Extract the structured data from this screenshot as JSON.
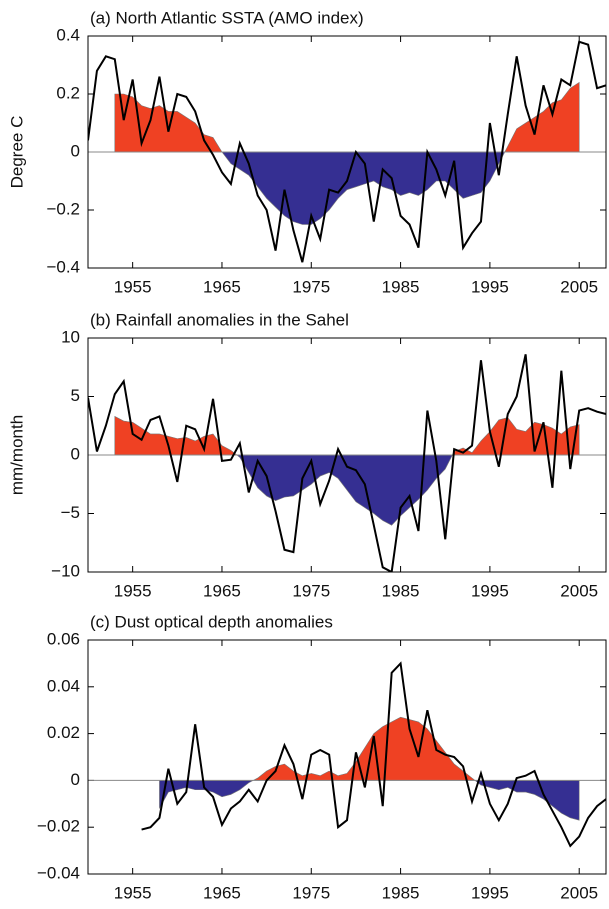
{
  "chart_data": [
    {
      "type": "line",
      "title": "(a) North Atlantic SSTA (AMO index)",
      "ylabel": "Degree C",
      "x": [
        1950,
        1951,
        1952,
        1953,
        1954,
        1955,
        1956,
        1957,
        1958,
        1959,
        1960,
        1961,
        1962,
        1963,
        1964,
        1965,
        1966,
        1967,
        1968,
        1969,
        1970,
        1971,
        1972,
        1973,
        1974,
        1975,
        1976,
        1977,
        1978,
        1979,
        1980,
        1981,
        1982,
        1983,
        1984,
        1985,
        1986,
        1987,
        1988,
        1989,
        1990,
        1991,
        1992,
        1993,
        1994,
        1995,
        1996,
        1997,
        1998,
        1999,
        2000,
        2001,
        2002,
        2003,
        2004,
        2005,
        2006,
        2007,
        2008
      ],
      "xlim": [
        1950,
        2008
      ],
      "xticks": [
        1955,
        1965,
        1975,
        1985,
        1995,
        2005
      ],
      "ylim": [
        -0.4,
        0.4
      ],
      "yticks": [
        {
          "value": -0.4,
          "label": "−0.4"
        },
        {
          "value": -0.2,
          "label": "−0.2"
        },
        0,
        0.2,
        0.4
      ],
      "series": [
        {
          "type": "area",
          "fill_positive": "#ef4123",
          "fill_negative": "#352f92",
          "values": [
            null,
            null,
            null,
            0.2,
            0.2,
            0.19,
            0.16,
            0.15,
            0.16,
            0.14,
            0.14,
            0.12,
            0.1,
            0.06,
            0.05,
            0.0,
            -0.04,
            -0.06,
            -0.08,
            -0.12,
            -0.16,
            -0.19,
            -0.22,
            -0.24,
            -0.25,
            -0.25,
            -0.23,
            -0.2,
            -0.16,
            -0.13,
            -0.12,
            -0.11,
            -0.1,
            -0.12,
            -0.13,
            -0.15,
            -0.14,
            -0.15,
            -0.13,
            -0.1,
            -0.1,
            -0.13,
            -0.16,
            -0.15,
            -0.14,
            -0.1,
            -0.04,
            0.02,
            0.08,
            0.1,
            0.12,
            0.14,
            0.17,
            0.18,
            0.22,
            0.24,
            null,
            null,
            null
          ]
        },
        {
          "type": "line",
          "color": "#000000",
          "values": [
            0.04,
            0.28,
            0.33,
            0.32,
            0.11,
            0.25,
            0.03,
            0.11,
            0.26,
            0.07,
            0.2,
            0.19,
            0.14,
            0.04,
            -0.01,
            -0.07,
            -0.11,
            0.03,
            -0.04,
            -0.15,
            -0.2,
            -0.34,
            -0.13,
            -0.27,
            -0.38,
            -0.22,
            -0.3,
            -0.13,
            -0.14,
            -0.1,
            0.0,
            -0.04,
            -0.24,
            -0.06,
            -0.09,
            -0.22,
            -0.25,
            -0.33,
            0.0,
            -0.06,
            -0.15,
            -0.03,
            -0.33,
            -0.28,
            -0.24,
            0.1,
            -0.08,
            0.13,
            0.33,
            0.16,
            0.06,
            0.23,
            0.13,
            0.25,
            0.23,
            0.38,
            0.37,
            0.22,
            0.23
          ]
        }
      ]
    },
    {
      "type": "line",
      "title": "(b) Rainfall anomalies in the Sahel",
      "ylabel": "mm/month",
      "x": [
        1950,
        1951,
        1952,
        1953,
        1954,
        1955,
        1956,
        1957,
        1958,
        1959,
        1960,
        1961,
        1962,
        1963,
        1964,
        1965,
        1966,
        1967,
        1968,
        1969,
        1970,
        1971,
        1972,
        1973,
        1974,
        1975,
        1976,
        1977,
        1978,
        1979,
        1980,
        1981,
        1982,
        1983,
        1984,
        1985,
        1986,
        1987,
        1988,
        1989,
        1990,
        1991,
        1992,
        1993,
        1994,
        1995,
        1996,
        1997,
        1998,
        1999,
        2000,
        2001,
        2002,
        2003,
        2004,
        2005,
        2006,
        2007,
        2008
      ],
      "xlim": [
        1950,
        2008
      ],
      "xticks": [
        1955,
        1965,
        1975,
        1985,
        1995,
        2005
      ],
      "ylim": [
        -10,
        10
      ],
      "yticks": [
        {
          "value": -10,
          "label": "−10"
        },
        {
          "value": -5,
          "label": "−5"
        },
        0,
        5,
        10
      ],
      "series": [
        {
          "type": "area",
          "fill_positive": "#ef4123",
          "fill_negative": "#352f92",
          "values": [
            null,
            null,
            null,
            3.3,
            2.9,
            2.8,
            2.3,
            1.8,
            1.8,
            1.6,
            1.4,
            1.5,
            1.2,
            1.6,
            1.8,
            0.8,
            0.4,
            -0.2,
            -1.5,
            -2.8,
            -3.5,
            -3.9,
            -3.6,
            -3.5,
            -3.0,
            -2.5,
            -1.8,
            -1.5,
            -2.0,
            -3.0,
            -4.0,
            -4.5,
            -5.0,
            -5.6,
            -6.0,
            -5.2,
            -4.5,
            -3.8,
            -3.0,
            -2.0,
            -1.2,
            0.3,
            0.6,
            0.2,
            1.2,
            2.0,
            3.0,
            3.2,
            2.2,
            2.0,
            2.8,
            2.6,
            2.3,
            1.8,
            2.4,
            2.6,
            null,
            null,
            null
          ]
        },
        {
          "type": "line",
          "color": "#000000",
          "values": [
            4.9,
            0.3,
            2.5,
            5.2,
            6.3,
            1.8,
            1.3,
            3.0,
            3.3,
            0.8,
            -2.3,
            2.5,
            2.2,
            0.5,
            4.8,
            -0.5,
            -0.4,
            1.0,
            -3.2,
            -0.5,
            -1.8,
            -4.8,
            -8.1,
            -8.3,
            -2.0,
            -0.5,
            -4.2,
            -2.2,
            0.5,
            -1.0,
            -1.3,
            -2.5,
            -6.0,
            -9.6,
            -10.0,
            -4.5,
            -3.5,
            -6.5,
            3.8,
            -0.5,
            -7.2,
            0.5,
            0.2,
            0.8,
            8.1,
            2.0,
            -1.0,
            3.5,
            5.0,
            8.6,
            0.3,
            2.8,
            -2.8,
            7.2,
            -1.2,
            3.8,
            4.0,
            3.7,
            3.5
          ]
        }
      ]
    },
    {
      "type": "line",
      "title": "(c) Dust optical depth anomalies",
      "x": [
        1950,
        1951,
        1952,
        1953,
        1954,
        1955,
        1956,
        1957,
        1958,
        1959,
        1960,
        1961,
        1962,
        1963,
        1964,
        1965,
        1966,
        1967,
        1968,
        1969,
        1970,
        1971,
        1972,
        1973,
        1974,
        1975,
        1976,
        1977,
        1978,
        1979,
        1980,
        1981,
        1982,
        1983,
        1984,
        1985,
        1986,
        1987,
        1988,
        1989,
        1990,
        1991,
        1992,
        1993,
        1994,
        1995,
        1996,
        1997,
        1998,
        1999,
        2000,
        2001,
        2002,
        2003,
        2004,
        2005,
        2006,
        2007,
        2008
      ],
      "xlim": [
        1950,
        2008
      ],
      "xticks": [
        1955,
        1965,
        1975,
        1985,
        1995,
        2005
      ],
      "ylim": [
        -0.04,
        0.06
      ],
      "yticks": [
        {
          "value": -0.04,
          "label": "−0.04"
        },
        {
          "value": -0.02,
          "label": "−0.02"
        },
        0,
        {
          "value": 0.02,
          "label": "0.02"
        },
        {
          "value": 0.04,
          "label": "0.04"
        },
        {
          "value": 0.06,
          "label": "0.06"
        }
      ],
      "series": [
        {
          "type": "area",
          "fill_positive": "#ef4123",
          "fill_negative": "#352f92",
          "values": [
            null,
            null,
            null,
            null,
            null,
            null,
            null,
            null,
            -0.012,
            -0.005,
            -0.004,
            -0.003,
            -0.004,
            -0.004,
            -0.005,
            -0.007,
            -0.006,
            -0.004,
            -0.001,
            0.001,
            0.004,
            0.006,
            0.007,
            0.004,
            0.002,
            0.003,
            0.002,
            0.004,
            0.002,
            0.003,
            0.008,
            0.014,
            0.02,
            0.023,
            0.025,
            0.027,
            0.026,
            0.025,
            0.022,
            0.017,
            0.012,
            0.007,
            0.004,
            0.001,
            -0.002,
            -0.003,
            -0.004,
            -0.003,
            -0.005,
            -0.005,
            -0.006,
            -0.008,
            -0.011,
            -0.014,
            -0.016,
            -0.017,
            null,
            null,
            null
          ]
        },
        {
          "type": "line",
          "color": "#000000",
          "values": [
            null,
            null,
            null,
            null,
            null,
            null,
            -0.021,
            -0.02,
            -0.016,
            0.005,
            -0.01,
            -0.005,
            0.024,
            -0.003,
            -0.007,
            -0.019,
            -0.012,
            -0.009,
            -0.004,
            -0.009,
            0.0,
            0.004,
            0.015,
            0.007,
            -0.008,
            0.011,
            0.013,
            0.011,
            -0.02,
            -0.017,
            0.012,
            -0.003,
            0.019,
            -0.011,
            0.046,
            0.05,
            0.022,
            0.01,
            0.03,
            0.013,
            0.011,
            0.01,
            0.006,
            -0.009,
            0.003,
            -0.01,
            -0.017,
            -0.01,
            0.001,
            0.002,
            0.004,
            -0.006,
            -0.013,
            -0.02,
            -0.028,
            -0.024,
            -0.016,
            -0.011,
            -0.008
          ]
        }
      ]
    }
  ]
}
